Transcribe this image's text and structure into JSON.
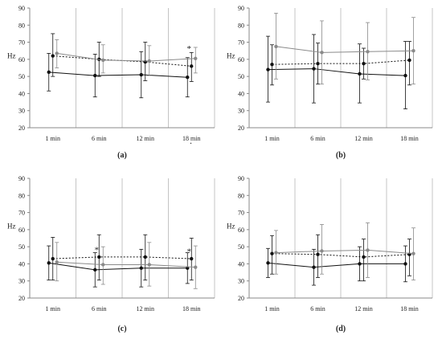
{
  "chart_data": [
    {
      "type": "line",
      "panel_label": "(a)",
      "categories": [
        "1 min",
        "6 min",
        "12 min",
        "18 min"
      ],
      "ylabel": "Hz",
      "ylim": [
        20,
        90
      ],
      "yticks": [
        "20",
        "30",
        "40",
        "50",
        "60",
        "70",
        "80",
        "90"
      ],
      "grid": "vertical",
      "legend": "none",
      "series": [
        {
          "style": "black-solid",
          "values": [
            52.5,
            50.5,
            51,
            49.5
          ],
          "err_low": [
            41.5,
            38,
            37.5,
            38
          ],
          "err_high": [
            63.5,
            63,
            64.5,
            61
          ]
        },
        {
          "style": "black-dotted",
          "values": [
            62,
            60,
            58.5,
            56
          ],
          "err_low": [
            50,
            50,
            47.5,
            47
          ],
          "err_high": [
            75,
            70,
            70,
            64
          ]
        },
        {
          "style": "gray-solid",
          "values": [
            63.5,
            59.5,
            59,
            60.5
          ],
          "err_low": [
            55,
            52,
            50.5,
            52
          ],
          "err_high": [
            71.5,
            68.5,
            68,
            67
          ]
        }
      ],
      "annotations": [
        {
          "text": "*",
          "category": "18 min",
          "y": 66
        }
      ]
    },
    {
      "type": "line",
      "panel_label": "(b)",
      "categories": [
        "1 min",
        "6 min",
        "12 min",
        "18 min"
      ],
      "ylabel": "Hz",
      "ylim": [
        20,
        90
      ],
      "yticks": [
        "20",
        "30",
        "40",
        "50",
        "60",
        "70",
        "80",
        "90"
      ],
      "grid": "vertical",
      "legend": "none",
      "series": [
        {
          "style": "black-solid",
          "values": [
            54,
            54.5,
            51.5,
            50.5
          ],
          "err_low": [
            35,
            34.5,
            34.5,
            31
          ],
          "err_high": [
            73.5,
            74.5,
            69,
            70.5
          ]
        },
        {
          "style": "black-dotted",
          "values": [
            57,
            57.5,
            57.5,
            59.5
          ],
          "err_low": [
            45,
            45.5,
            48.5,
            45
          ],
          "err_high": [
            68.5,
            69.5,
            66.5,
            70.5
          ]
        },
        {
          "style": "gray-solid",
          "values": [
            67.5,
            64,
            64.5,
            65
          ],
          "err_low": [
            48.5,
            45.5,
            48,
            45.5
          ],
          "err_high": [
            87,
            82.5,
            81.5,
            84.5
          ]
        }
      ],
      "annotations": []
    },
    {
      "type": "line",
      "panel_label": "(c)",
      "categories": [
        "1 min",
        "6 min",
        "12 min",
        "18 min"
      ],
      "ylabel": "Hz",
      "ylim": [
        20,
        90
      ],
      "yticks": [
        "20",
        "30",
        "40",
        "50",
        "60",
        "70",
        "80",
        "90"
      ],
      "grid": "vertical",
      "legend": "none",
      "series": [
        {
          "style": "black-solid",
          "values": [
            40.5,
            36.5,
            37.5,
            37.5
          ],
          "err_low": [
            30.5,
            26.5,
            26.5,
            28.5
          ],
          "err_high": [
            50.5,
            46.5,
            48.5,
            46.5
          ]
        },
        {
          "style": "black-dotted",
          "values": [
            43,
            44,
            44,
            43
          ],
          "err_low": [
            30.5,
            30.5,
            30.5,
            30.5
          ],
          "err_high": [
            55.5,
            57,
            57,
            55
          ]
        },
        {
          "style": "gray-solid",
          "values": [
            41,
            39.5,
            39.5,
            38
          ],
          "err_low": [
            30,
            28,
            27,
            25.5
          ],
          "err_high": [
            52.5,
            50,
            52.5,
            50.5
          ]
        }
      ],
      "annotations": [
        {
          "text": "*",
          "category": "6 min",
          "y": 48
        },
        {
          "text": "*",
          "category": "18 min",
          "y": 47
        }
      ]
    },
    {
      "type": "line",
      "panel_label": "(d)",
      "categories": [
        "1 min",
        "6 min",
        "12 min",
        "18 min"
      ],
      "ylabel": "Hz",
      "ylim": [
        20,
        90
      ],
      "yticks": [
        "20",
        "30",
        "40",
        "50",
        "60",
        "70",
        "80",
        "90"
      ],
      "grid": "vertical",
      "legend": "none",
      "series": [
        {
          "style": "black-solid",
          "values": [
            40.5,
            38,
            40,
            40
          ],
          "err_low": [
            32,
            27.5,
            30,
            29.5
          ],
          "err_high": [
            49,
            48.5,
            50,
            50.5
          ]
        },
        {
          "style": "black-dotted",
          "values": [
            46,
            45.5,
            44,
            45.5
          ],
          "err_low": [
            34,
            32,
            30,
            33
          ],
          "err_high": [
            56.5,
            57,
            54.5,
            54.5
          ]
        },
        {
          "style": "gray-solid",
          "values": [
            46.5,
            47.5,
            48,
            46
          ],
          "err_low": [
            34,
            34,
            32,
            30.5
          ],
          "err_high": [
            59.5,
            63,
            64,
            61
          ]
        }
      ],
      "annotations": []
    }
  ],
  "colors": {
    "axis": "#888888",
    "grid": "#c4c4c4",
    "black_series": "#111111",
    "gray_series": "#8a8a8a",
    "text": "#222222"
  },
  "stray_mark": "."
}
